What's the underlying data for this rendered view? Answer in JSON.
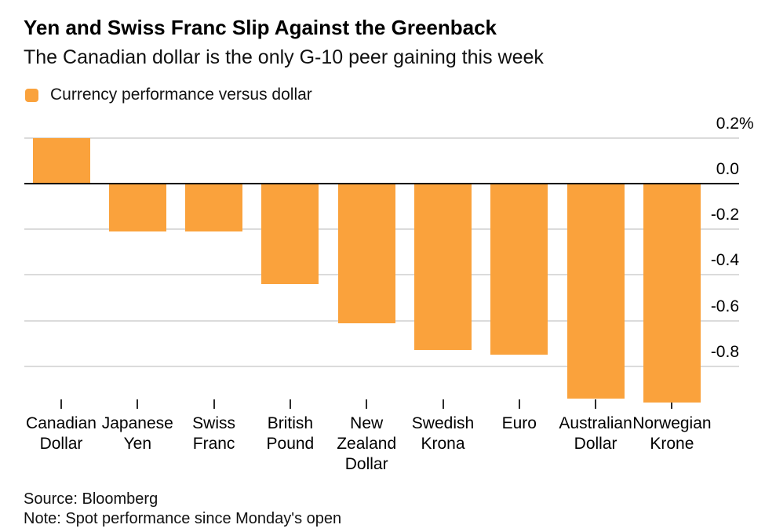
{
  "title": "Yen and Swiss Franc Slip Against the Greenback",
  "subtitle": "The Canadian dollar is the only G-10 peer gaining this week",
  "legend": {
    "label": "Currency performance versus dollar"
  },
  "footer": {
    "source": "Source: Bloomberg",
    "note": "Note: Spot performance since Monday's open"
  },
  "colors": {
    "bar_orange": "#FAA23C",
    "gridline": "#DBDBDB",
    "zero_line": "#000000"
  },
  "chart_data": {
    "type": "bar",
    "title": "Currency performance versus dollar",
    "categories": [
      "Canadian Dollar",
      "Japanese Yen",
      "Swiss Franc",
      "British Pound",
      "New Zealand Dollar",
      "Swedish Krona",
      "Euro",
      "Australian Dollar",
      "Norwegian Krone"
    ],
    "values": [
      0.2,
      -0.21,
      -0.21,
      -0.44,
      -0.61,
      -0.73,
      -0.75,
      -0.94,
      -0.96
    ],
    "unit": "%",
    "xlabel": "",
    "ylabel": "",
    "y_ticks": [
      0.2,
      0.0,
      -0.2,
      -0.4,
      -0.6,
      -0.8
    ],
    "y_tick_labels": [
      "0.2%",
      "0.0",
      "-0.2",
      "-0.4",
      "-0.6",
      "-0.8"
    ],
    "ylim": [
      -0.97,
      0.29
    ],
    "grid": true,
    "gridlines": "horizontal",
    "legend_position": "top-left",
    "y_axis_side": "right",
    "bar_color": "#FAA23C"
  }
}
